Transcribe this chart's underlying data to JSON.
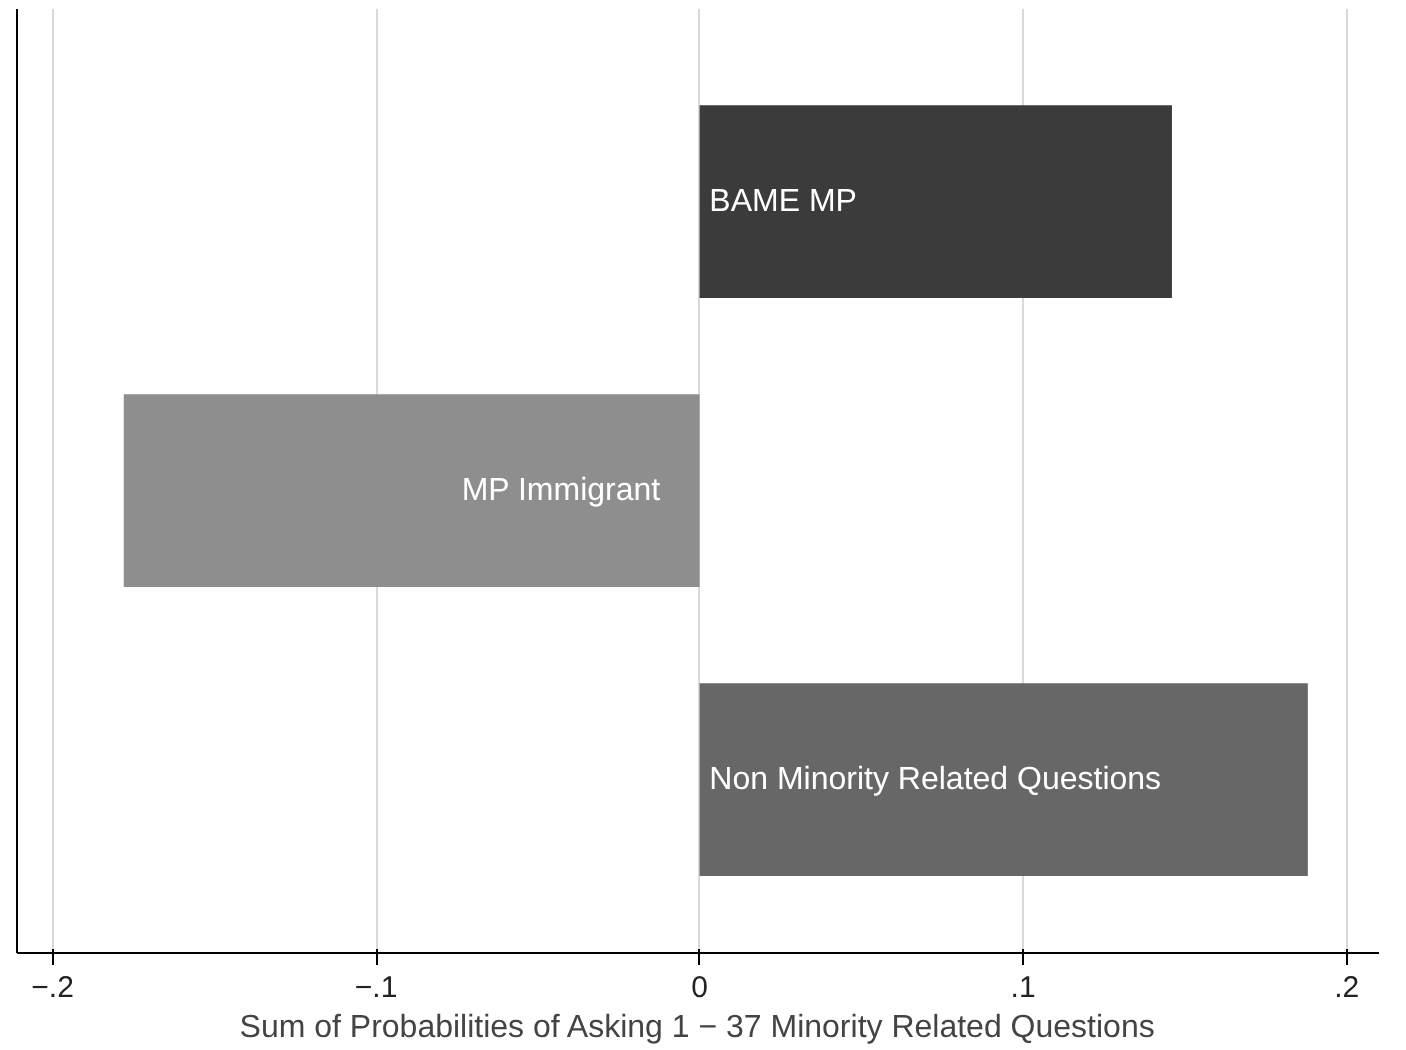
{
  "chart_data": {
    "type": "bar",
    "orientation": "horizontal",
    "xlabel": "Sum of Probabilities of Asking 1 − 37 Minority Related Questions",
    "categories": [
      "BAME MP",
      "MP Immigrant",
      "Non Minority Related Questions"
    ],
    "values": [
      0.146,
      -0.178,
      0.188
    ],
    "colors": [
      "#3b3b3b",
      "#8e8e8e",
      "#676767"
    ],
    "xlim": [
      -0.211,
      0.21
    ],
    "xticks": [
      {
        "value": -0.2,
        "label": "−.2"
      },
      {
        "value": -0.1,
        "label": "−.1"
      },
      0,
      {
        "value": 0.1,
        "label": ".1"
      },
      {
        "value": 0.2,
        "label": ".2"
      }
    ],
    "grid": "x",
    "tick_labels": "x"
  }
}
